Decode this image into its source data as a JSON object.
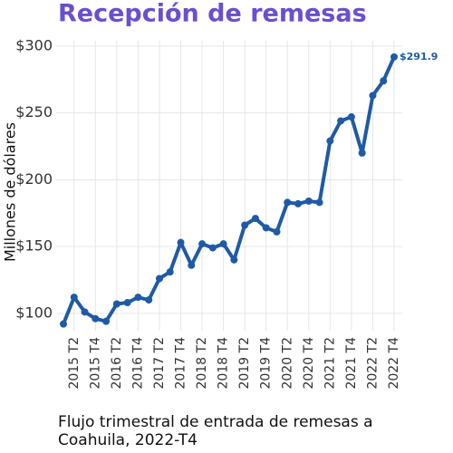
{
  "chart_data": {
    "type": "line",
    "title": "Recepción de remesas",
    "y_label": "Millones de dólares",
    "caption": "Flujo trimestral de entrada de remesas a Coahuila, 2022-T4",
    "categories": [
      null,
      "2015 T2",
      null,
      "2015 T4",
      null,
      "2016 T2",
      null,
      "2016 T4",
      null,
      "2017 T2",
      null,
      "2017 T4",
      null,
      "2018 T2",
      null,
      "2018 T4",
      null,
      "2019 T2",
      null,
      "2019 T4",
      null,
      "2020 T2",
      null,
      "2020 T4",
      null,
      "2021 T2",
      null,
      "2021 T4",
      null,
      "2022 T2",
      null,
      "2022 T4"
    ],
    "series": [
      {
        "name": "Remesas",
        "color": "#1f5aa6",
        "values": [
          92,
          112,
          101,
          96,
          94,
          107,
          108,
          112,
          110,
          126,
          131,
          153,
          136,
          152,
          149,
          152,
          140,
          166,
          171,
          164,
          161,
          183,
          182,
          184,
          183,
          229,
          244,
          247,
          220,
          263,
          274,
          291.9
        ],
        "value_labels": [
          null,
          null,
          null,
          null,
          null,
          null,
          null,
          null,
          null,
          null,
          null,
          null,
          null,
          null,
          null,
          null,
          null,
          null,
          null,
          null,
          null,
          null,
          null,
          null,
          null,
          null,
          null,
          null,
          null,
          null,
          null,
          "$291.9"
        ]
      }
    ],
    "ylim": [
      87,
      304
    ],
    "yticks": [
      {
        "value": 100,
        "label": "$100"
      },
      {
        "value": 150,
        "label": "$150"
      },
      {
        "value": 200,
        "label": "$200"
      },
      {
        "value": 250,
        "label": "$250"
      },
      {
        "value": 300,
        "label": "$300"
      }
    ],
    "grid": true
  }
}
